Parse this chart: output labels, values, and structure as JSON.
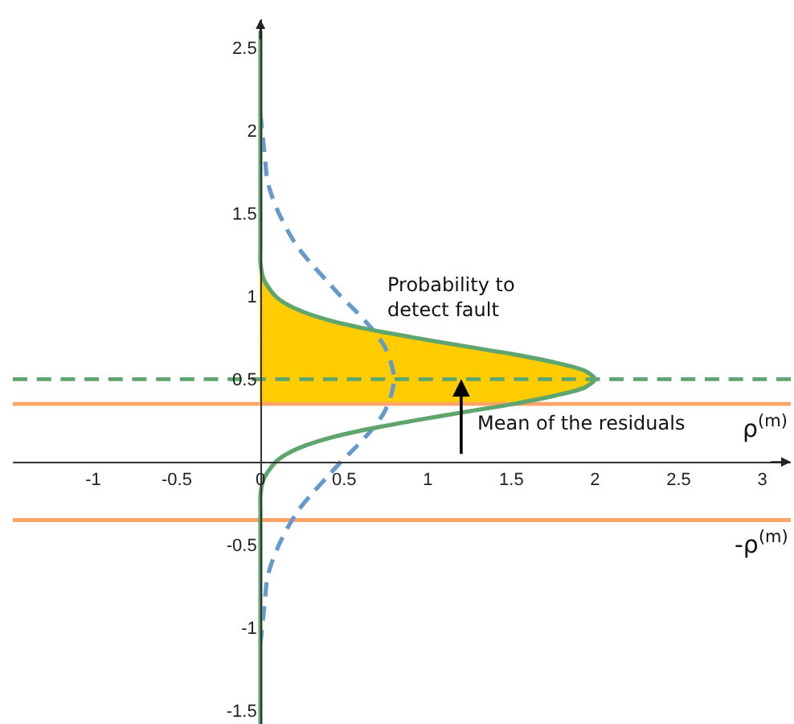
{
  "chart_data": {
    "type": "line",
    "series": [
      {
        "type": "area",
        "color": "#ffcc00",
        "x": [
          0.0,
          1.51,
          1.76,
          1.94,
          2.0,
          1.94,
          1.76,
          1.51,
          1.21,
          0.92,
          0.65,
          0.43,
          0.27,
          0.16,
          0.09,
          0.02,
          0.0,
          0.0
        ],
        "values": [
          0.35,
          0.35,
          0.4,
          0.45,
          0.5,
          0.55,
          0.6,
          0.65,
          0.7,
          0.75,
          0.8,
          0.85,
          0.9,
          0.95,
          1.0,
          1.1,
          1.2,
          0.35
        ]
      },
      {
        "color": "#6699cc",
        "line_style": "dashed",
        "x": [
          0.0,
          0.01,
          0.02,
          0.03,
          0.04,
          0.07,
          0.11,
          0.16,
          0.22,
          0.3,
          0.39,
          0.48,
          0.58,
          0.67,
          0.74,
          0.78,
          0.8,
          0.78,
          0.74,
          0.67,
          0.58,
          0.48,
          0.39,
          0.3,
          0.22,
          0.16,
          0.11,
          0.07,
          0.04,
          0.03,
          0.02,
          0.01,
          0.0
        ],
        "values": [
          -1.1,
          -1.0,
          -0.9,
          -0.8,
          -0.7,
          -0.6,
          -0.5,
          -0.4,
          -0.3,
          -0.2,
          -0.1,
          0.0,
          0.1,
          0.2,
          0.3,
          0.4,
          0.5,
          0.6,
          0.7,
          0.8,
          0.9,
          1.0,
          1.1,
          1.2,
          1.3,
          1.4,
          1.5,
          1.6,
          1.7,
          1.8,
          1.9,
          2.0,
          2.1
        ]
      },
      {
        "color": "#5fa56e",
        "line_style": "solid",
        "x": [
          0.0,
          0.0,
          0.0,
          0.02,
          0.09,
          0.16,
          0.27,
          0.43,
          0.65,
          0.92,
          1.21,
          1.51,
          1.76,
          1.94,
          2.0,
          1.94,
          1.76,
          1.51,
          1.21,
          0.92,
          0.65,
          0.43,
          0.27,
          0.16,
          0.09,
          0.02,
          0.0,
          0.0,
          0.0
        ],
        "values": [
          -1.58,
          -0.3,
          -0.2,
          -0.1,
          0.0,
          0.05,
          0.1,
          0.15,
          0.2,
          0.25,
          0.3,
          0.35,
          0.4,
          0.45,
          0.5,
          0.55,
          0.6,
          0.65,
          0.7,
          0.75,
          0.8,
          0.85,
          0.9,
          0.95,
          1.0,
          1.1,
          1.2,
          1.3,
          2.6
        ]
      }
    ],
    "xlim": [
      -1.48,
      3.17
    ],
    "ylim": [
      -1.58,
      2.67
    ],
    "xticks": [
      -1,
      -0.5,
      0,
      0.5,
      1,
      1.5,
      2,
      2.5,
      3
    ],
    "yticks": [
      -1.5,
      -1,
      -0.5,
      0.5,
      1,
      1.5,
      2,
      2.5
    ],
    "ref_lines": [
      {
        "axis": "y",
        "value": 0.35,
        "label": "ρ$^{(m)}$",
        "color": "#ffa366"
      },
      {
        "axis": "y",
        "value": -0.35,
        "label": "-ρ$^{(m)}$",
        "color": "#ffa366"
      },
      {
        "axis": "y",
        "value": 0.5,
        "color": "#5fa56e",
        "line_style": "dashed"
      }
    ],
    "annotations": [
      "Probability to\ndetect fault",
      {
        "text": "Mean of the residuals",
        "x": 1.2,
        "y": 0.5
      }
    ]
  }
}
